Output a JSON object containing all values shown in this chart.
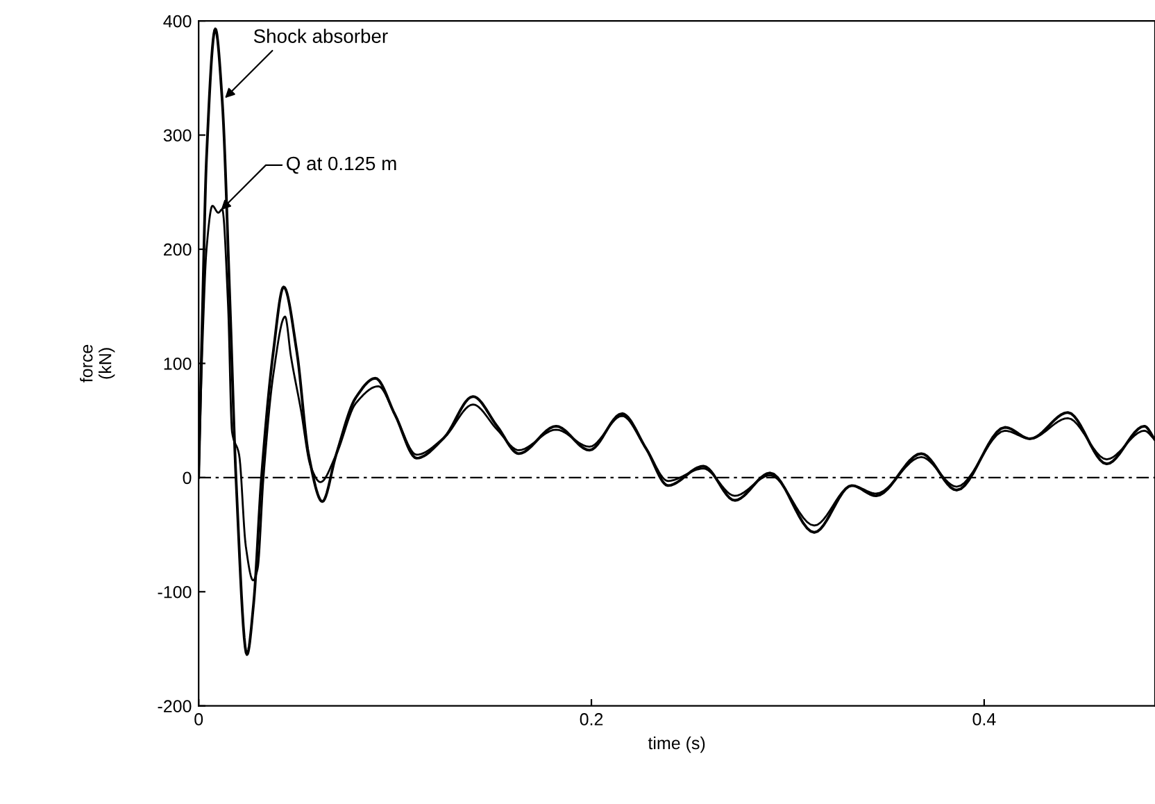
{
  "chart_data": {
    "type": "line",
    "xlabel": "time (s)",
    "ylabel": "force\n(kN)",
    "xlim": [
      0,
      0.487
    ],
    "xticks": [
      0,
      {
        "value": 0.2,
        "label": "0.2"
      },
      {
        "value": 0.4,
        "label": "0.4"
      }
    ],
    "ylim": [
      -200,
      400
    ],
    "yticks": [
      -200,
      -100,
      0,
      100,
      200,
      300,
      400
    ],
    "grid": false,
    "legend": false,
    "marker": "none",
    "line_style": "solid",
    "ref_lines": [
      {
        "axis": "y",
        "value": 0,
        "color": "#000000",
        "line_style": "dashed"
      }
    ],
    "series": [
      {
        "name": "Shock absorber",
        "color": "#000000",
        "x": [
          0,
          0.002,
          0.004,
          0.0085,
          0.012,
          0.016,
          0.019,
          0.0246,
          0.028,
          0.032,
          0.038,
          0.0433,
          0.05,
          0.056,
          0.063,
          0.07,
          0.08,
          0.09,
          0.1,
          0.111,
          0.125,
          0.1397,
          0.152,
          0.163,
          0.182,
          0.199,
          0.2156,
          0.228,
          0.239,
          0.257,
          0.273,
          0.291,
          0.3135,
          0.3326,
          0.345,
          0.368,
          0.386,
          0.4106,
          0.4234,
          0.4426,
          0.4624,
          0.4816,
          0.487
        ],
        "values": [
          0,
          150,
          280,
          393,
          330,
          150,
          0,
          -155,
          -110,
          0,
          110,
          167,
          110,
          20,
          -21,
          20,
          70,
          87,
          55,
          17,
          35,
          71,
          45,
          21,
          45,
          24,
          56,
          25,
          -7,
          10,
          -20,
          4,
          -48,
          -7,
          -16,
          21,
          -11,
          44,
          34,
          57,
          12,
          45,
          33
        ]
      },
      {
        "name": "Q at 0.125 m",
        "color": "#000000",
        "x": [
          0,
          0.002,
          0.004,
          0.007,
          0.01,
          0.012,
          0.015,
          0.017,
          0.0206,
          0.024,
          0.0277,
          0.03,
          0.033,
          0.038,
          0.044,
          0.047,
          0.052,
          0.057,
          0.062,
          0.07,
          0.08,
          0.0915,
          0.1,
          0.111,
          0.125,
          0.1397,
          0.152,
          0.163,
          0.182,
          0.199,
          0.2156,
          0.228,
          0.239,
          0.257,
          0.273,
          0.291,
          0.3135,
          0.3326,
          0.345,
          0.368,
          0.386,
          0.4106,
          0.4234,
          0.4426,
          0.4624,
          0.4816,
          0.487
        ],
        "values": [
          0,
          120,
          200,
          238,
          232,
          235,
          150,
          40,
          20,
          -60,
          -90,
          -80,
          0,
          90,
          141,
          106,
          60,
          10,
          -4,
          20,
          65,
          80,
          55,
          20,
          35,
          64,
          42,
          24,
          42,
          27,
          54,
          25,
          -3,
          8,
          -16,
          2,
          -42,
          -7,
          -14,
          18,
          -8,
          41,
          34,
          52,
          16,
          41,
          33
        ]
      }
    ]
  }
}
